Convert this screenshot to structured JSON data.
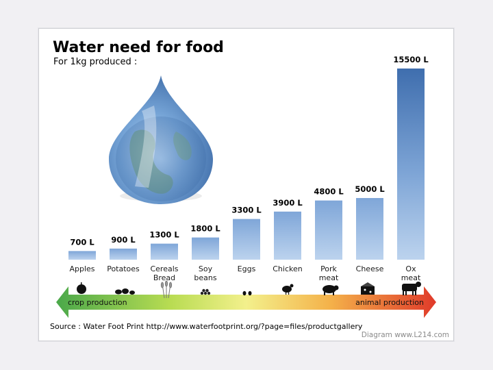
{
  "chart_data": {
    "type": "bar",
    "title": "Water need for food",
    "subtitle": "For 1kg produced :",
    "categories": [
      "Apples",
      "Potatoes",
      "Cereals Bread",
      "Soy beans",
      "Eggs",
      "Chicken",
      "Pork meat",
      "Cheese",
      "Ox meat"
    ],
    "category_lines": [
      [
        "Apples"
      ],
      [
        "Potatoes"
      ],
      [
        "Cereals",
        "Bread"
      ],
      [
        "Soy",
        "beans"
      ],
      [
        "Eggs"
      ],
      [
        "Chicken"
      ],
      [
        "Pork",
        "meat"
      ],
      [
        "Cheese"
      ],
      [
        "Ox",
        "meat"
      ]
    ],
    "values": [
      700,
      900,
      1300,
      1800,
      3300,
      3900,
      4800,
      5000,
      15500
    ],
    "value_labels": [
      "700 L",
      "900 L",
      "1300 L",
      "1800 L",
      "3300 L",
      "3900 L",
      "4800 L",
      "5000 L",
      "15500 L"
    ],
    "unit": "L",
    "ylim": [
      0,
      15500
    ],
    "xlabel": "",
    "ylabel": "",
    "grid": false,
    "colors": {
      "bar_top": "#7fa6d8",
      "bar_bottom": "#bcd3ee",
      "ox_top": "#3f6eae"
    },
    "arrow": {
      "left_label": "crop production",
      "right_label": "animal production",
      "colors": [
        "#4aa84a",
        "#c8e050",
        "#f5f08a",
        "#f5b04a",
        "#e03a2a"
      ]
    },
    "icons": [
      "apple-icon",
      "potatoes-icon",
      "wheat-icon",
      "soybeans-icon",
      "eggs-icon",
      "chicken-icon",
      "pig-icon",
      "cheese-icon",
      "cow-icon"
    ]
  },
  "footer": {
    "source": "Source : Water Foot Print http://www.waterfootprint.org/?page=files/productgallery",
    "credit": "Diagram www.L214.com"
  }
}
